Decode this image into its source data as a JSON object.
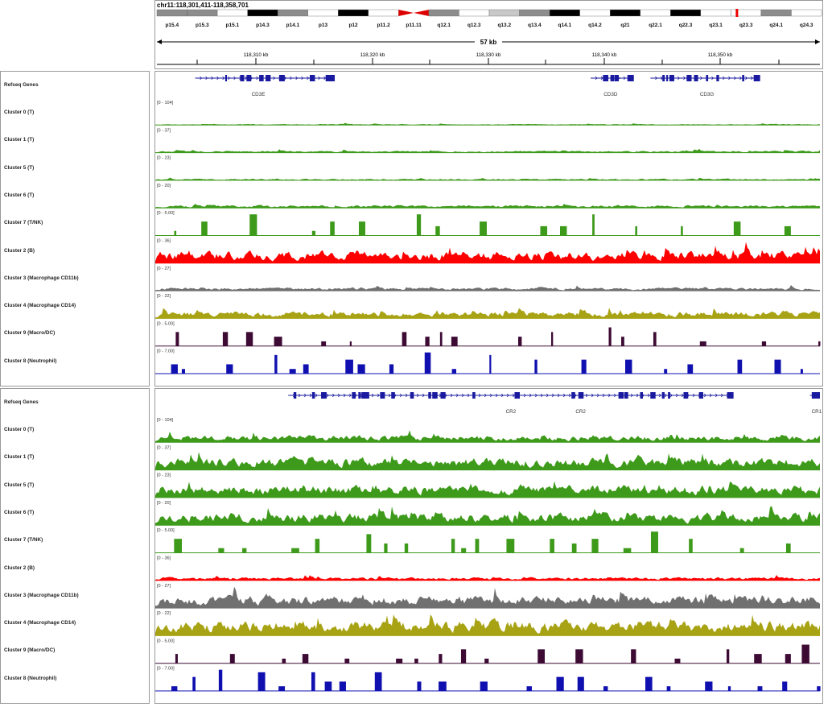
{
  "locus": "chr11:118,301,411-118,358,701",
  "span_label": "57 kb",
  "cyto_bands": [
    {
      "name": "p15.4",
      "stain": "g"
    },
    {
      "name": "p15.3",
      "stain": "g"
    },
    {
      "name": "p15.1",
      "stain": "w"
    },
    {
      "name": "p14.3",
      "stain": "k"
    },
    {
      "name": "p14.1",
      "stain": "g"
    },
    {
      "name": "p13",
      "stain": "w"
    },
    {
      "name": "p12",
      "stain": "k"
    },
    {
      "name": "p11.2",
      "stain": "w"
    },
    {
      "name": "p11.11",
      "stain": "c"
    },
    {
      "name": "q12.1",
      "stain": "g"
    },
    {
      "name": "q12.3",
      "stain": "w"
    },
    {
      "name": "q13.2",
      "stain": "l"
    },
    {
      "name": "q13.4",
      "stain": "g"
    },
    {
      "name": "q14.1",
      "stain": "k"
    },
    {
      "name": "q14.2",
      "stain": "w"
    },
    {
      "name": "q21",
      "stain": "k"
    },
    {
      "name": "q22.1",
      "stain": "w"
    },
    {
      "name": "q22.3",
      "stain": "k"
    },
    {
      "name": "q23.1",
      "stain": "w"
    },
    {
      "name": "q23.3",
      "stain": "w"
    },
    {
      "name": "q24.1",
      "stain": "g"
    },
    {
      "name": "q24.3",
      "stain": "w"
    }
  ],
  "ruler_ticks": [
    "118,310 kb",
    "118,320 kb",
    "118,330 kb",
    "118,340 kb",
    "118,350 kb"
  ],
  "panels": [
    {
      "genes_label": "Refseq Genes",
      "genes": [
        {
          "name": "CD3E",
          "start": 0.06,
          "end": 0.27,
          "label_pos": 0.155
        },
        {
          "name": "CD3D",
          "start": 0.655,
          "end": 0.72,
          "label_pos": 0.685
        },
        {
          "name": "CD3G",
          "start": 0.745,
          "end": 0.91,
          "label_pos": 0.83
        }
      ],
      "tracks": [
        {
          "name": "Cluster 0 (T)",
          "range": "[0 - 104]",
          "color": "#3d9a1a",
          "style": "area",
          "level": 0.04
        },
        {
          "name": "Cluster 1 (T)",
          "range": "[0 - 37]",
          "color": "#3d9a1a",
          "style": "area",
          "level": 0.07
        },
        {
          "name": "Cluster 5 (T)",
          "range": "[0 - 23]",
          "color": "#3d9a1a",
          "style": "area",
          "level": 0.06
        },
        {
          "name": "Cluster 6 (T)",
          "range": "[0 - 20]",
          "color": "#3d9a1a",
          "style": "area",
          "level": 0.1
        },
        {
          "name": "Cluster 7 (T/NK)",
          "range": "[0 - 5.00]",
          "color": "#3d9a1a",
          "style": "bars",
          "level": 0.25
        },
        {
          "name": "Cluster 2 (B)",
          "range": "[0 - 36]",
          "color": "#ff0000",
          "style": "area",
          "level": 0.45
        },
        {
          "name": "Cluster 3 (Macrophage CD11b)",
          "range": "[0 - 27]",
          "color": "#707070",
          "style": "area",
          "level": 0.12
        },
        {
          "name": "Cluster 4 (Macrophage CD14)",
          "range": "[0 - 22]",
          "color": "#a8a314",
          "style": "area",
          "level": 0.25
        },
        {
          "name": "Cluster 9 (Macro/DC)",
          "range": "[0 - 5.00]",
          "color": "#3d0a34",
          "style": "bars",
          "level": 0.25
        },
        {
          "name": "Cluster 8 (Neutrophil)",
          "range": "[0 - 7.00]",
          "color": "#1010b0",
          "style": "bars",
          "level": 0.35
        }
      ]
    },
    {
      "genes_label": "Refseq Genes",
      "genes": [
        {
          "name": "CR2",
          "start": 0.2,
          "end": 0.87,
          "label_pos": 0.535
        },
        {
          "name": "CR2",
          "start": 0.2,
          "end": 0.87,
          "label_pos": 0.64
        },
        {
          "name": "CR1",
          "start": 0.985,
          "end": 1.0,
          "label_pos": 0.995
        }
      ],
      "tracks": [
        {
          "name": "Cluster 0 (T)",
          "range": "[0 - 104]",
          "color": "#3d9a1a",
          "style": "area",
          "level": 0.25
        },
        {
          "name": "Cluster 1 (T)",
          "range": "[0 - 37]",
          "color": "#3d9a1a",
          "style": "area",
          "level": 0.45
        },
        {
          "name": "Cluster 5 (T)",
          "range": "[0 - 23]",
          "color": "#3d9a1a",
          "style": "area",
          "level": 0.45
        },
        {
          "name": "Cluster 6 (T)",
          "range": "[0 - 20]",
          "color": "#3d9a1a",
          "style": "area",
          "level": 0.45
        },
        {
          "name": "Cluster 7 (T/NK)",
          "range": "[0 - 5.00]",
          "color": "#3d9a1a",
          "style": "bars",
          "level": 0.3
        },
        {
          "name": "Cluster 2 (B)",
          "range": "[0 - 36]",
          "color": "#ff0000",
          "style": "area",
          "level": 0.12
        },
        {
          "name": "Cluster 3 (Macrophage CD11b)",
          "range": "[0 - 27]",
          "color": "#707070",
          "style": "area",
          "level": 0.45
        },
        {
          "name": "Cluster 4 (Macrophage CD14)",
          "range": "[0 - 22]",
          "color": "#a8a314",
          "style": "area",
          "level": 0.55
        },
        {
          "name": "Cluster 9 (Macro/DC)",
          "range": "[0 - 5.00]",
          "color": "#3d0a34",
          "style": "bars",
          "level": 0.3
        },
        {
          "name": "Cluster 8 (Neutrophil)",
          "range": "[0 - 7.00]",
          "color": "#1010b0",
          "style": "bars",
          "level": 0.4
        }
      ]
    }
  ]
}
